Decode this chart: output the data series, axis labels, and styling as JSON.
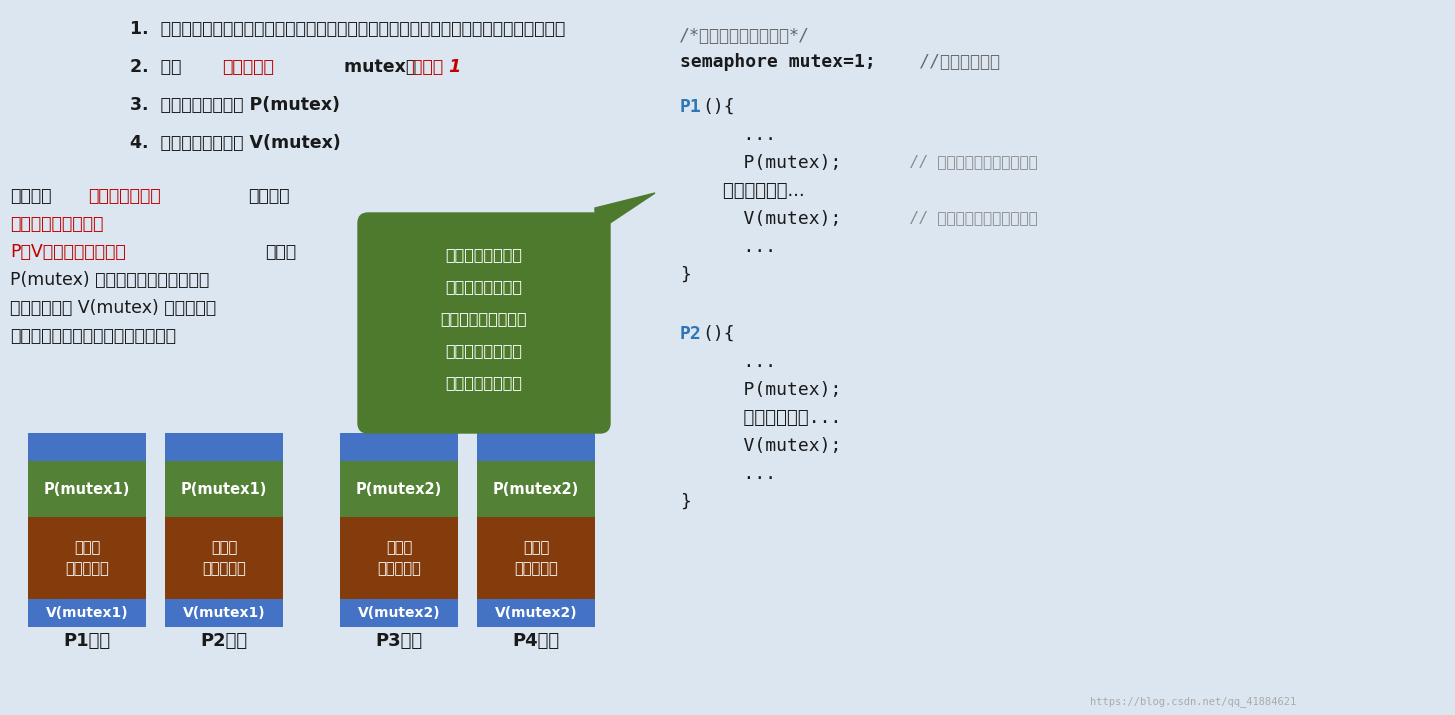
{
  "bg_slide": "#dce6f1",
  "title_steps": [
    "1.  分析并发进程的关键活动，划定临界区（如：对临界资源打印机的访问就应放在临界区）",
    "2.  设置互斥信号量 mutex，初值为 1",
    "3.  在临界区之前执行 P(mutex)",
    "4.  在临界区之后执行 V(mutex)"
  ],
  "bubble_text": [
    "要会自己定义记录",
    "型信号量，但如果",
    "题目中没特别说明，",
    "可以把信号量的声",
    "明简写成这种形式"
  ],
  "code_comment1": "/*信号量机制实现互斥*/",
  "code_semaphore": "semaphore mutex=1;",
  "code_init_comment": "  //初始化信号量",
  "p1_comment_p": "// 使用临界资源前需要加锁",
  "p1_comment_v": "// 使用临界资源后需要解锁",
  "blocks": [
    {
      "label": "P(mutex1)",
      "mid_text": "临界区\n（打印机）",
      "process": "P1进程",
      "v_label": "V(mutex1)"
    },
    {
      "label": "P(mutex1)",
      "mid_text": "临界区\n（打印机）",
      "process": "P2进程",
      "v_label": "V(mutex1)"
    },
    {
      "label": "P(mutex2)",
      "mid_text": "临界区\n（摄像头）",
      "process": "P3进程",
      "v_label": "V(mutex2)"
    },
    {
      "label": "P(mutex2)",
      "mid_text": "临界区\n（摄像头）",
      "process": "P4进程",
      "v_label": "V(mutex2)"
    }
  ],
  "color_blue": "#4472c4",
  "color_green_block": "#538135",
  "color_red_block": "#843c0c",
  "color_green_bubble": "#4e7a2e",
  "color_dark": "#1a1a1a",
  "color_red_text": "#c00000",
  "color_blue_text": "#2e75b6",
  "color_grey": "#666666",
  "color_light_grey": "#888888",
  "watermark": "https://blog.csdn.net/qq_41884621"
}
